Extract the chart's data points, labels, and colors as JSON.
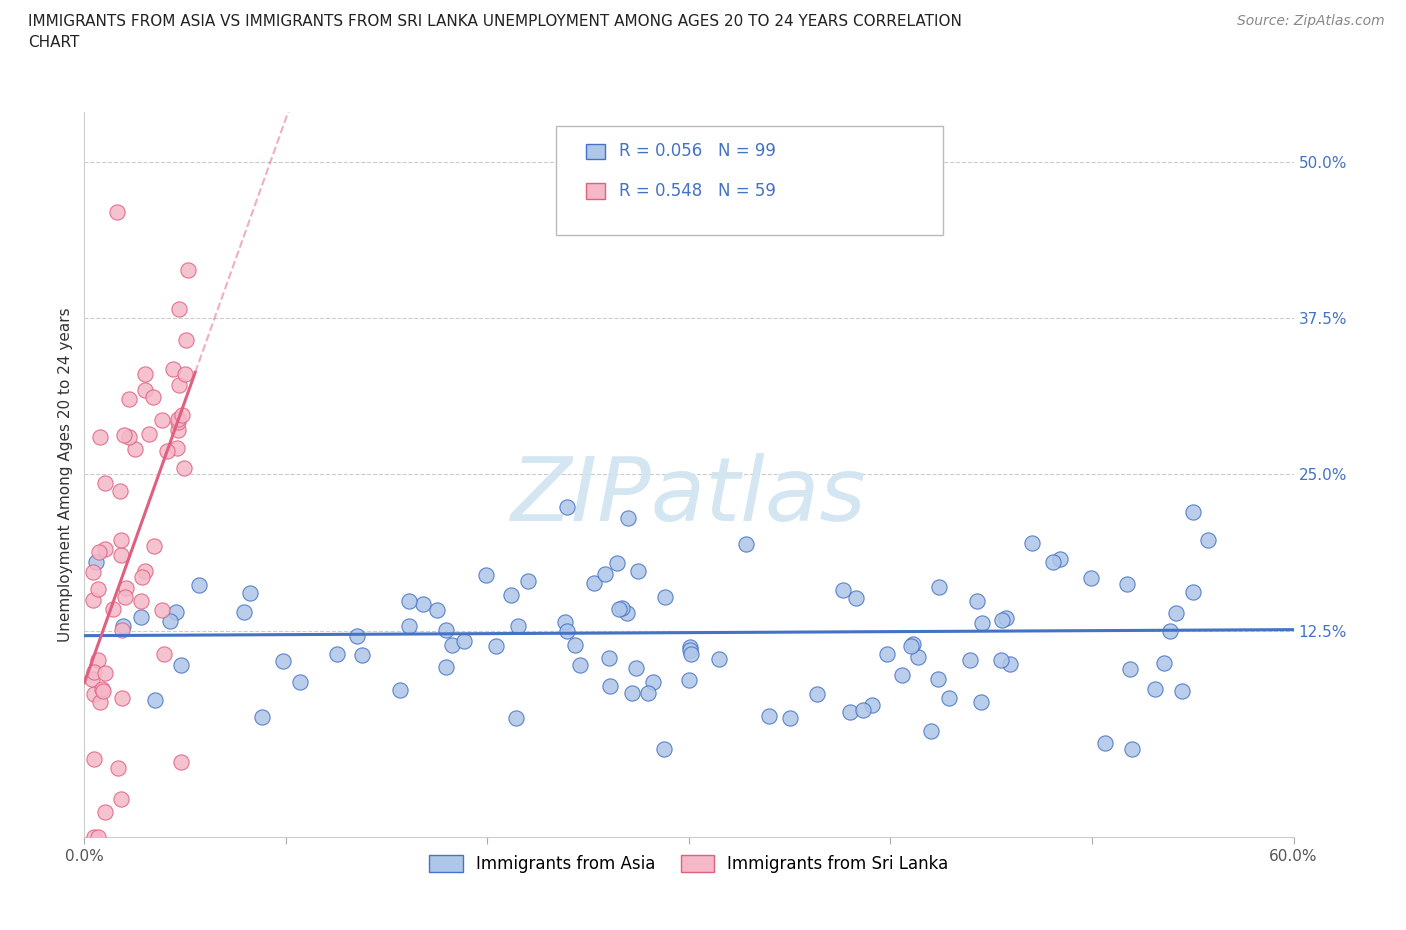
{
  "title": "IMMIGRANTS FROM ASIA VS IMMIGRANTS FROM SRI LANKA UNEMPLOYMENT AMONG AGES 20 TO 24 YEARS CORRELATION\nCHART",
  "source": "Source: ZipAtlas.com",
  "ylabel": "Unemployment Among Ages 20 to 24 years",
  "xlim": [
    0.0,
    0.6
  ],
  "ylim": [
    -0.04,
    0.54
  ],
  "ytick_positions": [
    0.0,
    0.125,
    0.25,
    0.375,
    0.5
  ],
  "yticklabels_right": [
    "",
    "12.5%",
    "25.0%",
    "37.5%",
    "50.0%"
  ],
  "xtick_positions": [
    0.0,
    0.1,
    0.2,
    0.3,
    0.4,
    0.5,
    0.6
  ],
  "xticklabels": [
    "0.0%",
    "",
    "",
    "",
    "",
    "",
    "60.0%"
  ],
  "r_asia": 0.056,
  "n_asia": 99,
  "r_srilanka": 0.548,
  "n_srilanka": 59,
  "color_asia_face": "#aec6e8",
  "color_asia_edge": "#4472c4",
  "color_srilanka_face": "#f4b8c8",
  "color_srilanka_edge": "#e06080",
  "trend_color_asia": "#4472c4",
  "trend_color_srilanka": "#e06080",
  "watermark_color": "#d0e4f0",
  "legend_entries": [
    "Immigrants from Asia",
    "Immigrants from Sri Lanka"
  ],
  "background_color": "#ffffff",
  "grid_color": "#cccccc",
  "title_fontsize": 11,
  "source_fontsize": 10,
  "tick_fontsize": 11
}
